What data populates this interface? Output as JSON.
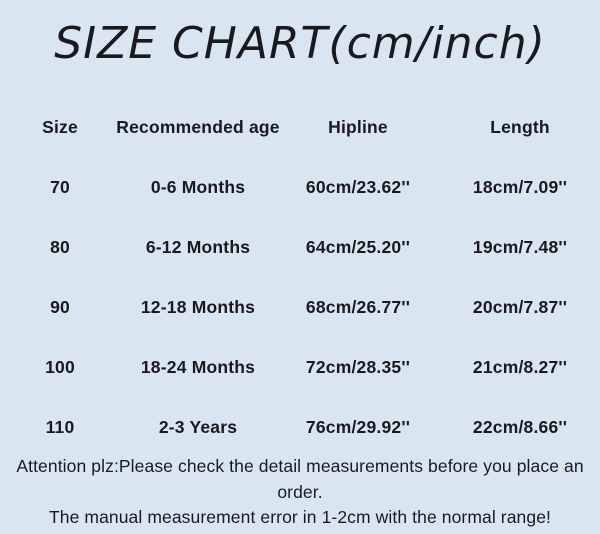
{
  "page": {
    "background_color": "#d9e6f2",
    "text_color": "#1a1a1e"
  },
  "title": "SIZE CHART(cm/inch)",
  "table": {
    "columns": [
      "Size",
      "Recommended age",
      "Hipline",
      "Length"
    ],
    "rows": [
      [
        "70",
        "0-6 Months",
        "60cm/23.62''",
        "18cm/7.09''"
      ],
      [
        "80",
        "6-12 Months",
        "64cm/25.20''",
        "19cm/7.48''"
      ],
      [
        "90",
        "12-18 Months",
        "68cm/26.77''",
        "20cm/7.87''"
      ],
      [
        "100",
        "18-24 Months",
        "72cm/28.35''",
        "21cm/8.27''"
      ],
      [
        "110",
        "2-3 Years",
        "76cm/29.92''",
        "22cm/8.66''"
      ]
    ]
  },
  "footer": {
    "lines": [
      "Attention plz:Please check the detail measurements before you place an",
      "order.",
      "The manual measurement error in 1-2cm with the normal range!"
    ]
  },
  "chart_data": {
    "type": "table",
    "title": "SIZE CHART(cm/inch)",
    "columns": [
      "Size",
      "Recommended age",
      "Hipline",
      "Length"
    ],
    "rows": [
      [
        "70",
        "0-6 Months",
        "60cm/23.62''",
        "18cm/7.09''"
      ],
      [
        "80",
        "6-12 Months",
        "64cm/25.20''",
        "19cm/7.48''"
      ],
      [
        "90",
        "12-18 Months",
        "68cm/26.77''",
        "20cm/7.87''"
      ],
      [
        "100",
        "18-24 Months",
        "72cm/28.35''",
        "21cm/8.27''"
      ],
      [
        "110",
        "2-3 Years",
        "76cm/29.92''",
        "22cm/8.66''"
      ]
    ],
    "hipline_cm": [
      60,
      64,
      68,
      72,
      76
    ],
    "hipline_inch": [
      23.62,
      25.2,
      26.77,
      28.35,
      29.92
    ],
    "length_cm": [
      18,
      19,
      20,
      21,
      22
    ],
    "length_inch": [
      7.09,
      7.48,
      7.87,
      8.27,
      8.66
    ],
    "notes": [
      "Attention plz:Please check the detail measurements before you place an order.",
      "The manual measurement error in 1-2cm with the normal range!"
    ]
  }
}
